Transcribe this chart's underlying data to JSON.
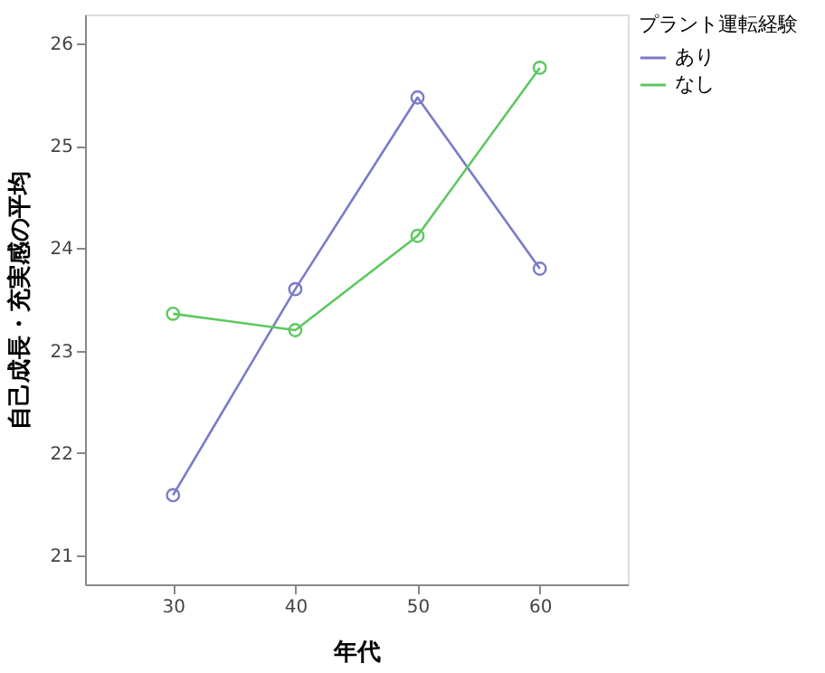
{
  "chart_data": {
    "type": "line",
    "xlabel": "年代",
    "ylabel": "自己成長・充実感の平均",
    "legend_title": "プラント運転経験",
    "x": [
      30,
      40,
      50,
      60
    ],
    "series": [
      {
        "name": "あり",
        "color": "#7b7bc8",
        "values": [
          21.59,
          23.6,
          25.47,
          23.8
        ]
      },
      {
        "name": "なし",
        "color": "#5ec85e",
        "values": [
          23.36,
          23.2,
          24.12,
          25.76
        ]
      }
    ],
    "xlim": [
      22.8,
      67.2
    ],
    "xticks": [
      30,
      40,
      50,
      60
    ],
    "ylim": [
      20.72,
      26.28
    ],
    "yticks": [
      21,
      22,
      23,
      24,
      25,
      26
    ],
    "grid": false,
    "legend": "top right",
    "marker": "circle",
    "line_style": "solid"
  }
}
